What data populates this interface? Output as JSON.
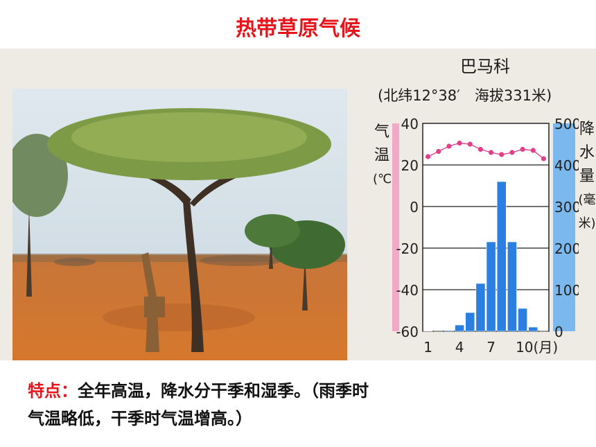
{
  "title": "热带草原气候",
  "station": {
    "name": "巴马科",
    "location": "(北纬12°38′　海拔331米)"
  },
  "axis_labels": {
    "left_chars": [
      "气",
      "温",
      "(℃)"
    ],
    "right_chars": [
      "降",
      "水",
      "量",
      "(毫",
      "米)"
    ]
  },
  "characteristics": {
    "lead": "特点：",
    "line1": "全年高温，降水分干季和湿季。（雨季时",
    "line2": "气温略低，干季时气温增高。）"
  },
  "colors": {
    "title": "#e8141c",
    "bar": "#2a7fe0",
    "temp_line": "#e0408a",
    "left_band": "#f2a9c8",
    "right_band": "#7ab8ee"
  },
  "chart_data": {
    "type": "bar+line",
    "categories": [
      "1",
      "2",
      "3",
      "4",
      "5",
      "6",
      "7",
      "8",
      "9",
      "10",
      "11",
      "12"
    ],
    "x_ticks": [
      "1",
      "4",
      "7",
      "10(月)"
    ],
    "temperature": {
      "unit": "℃",
      "values": [
        24,
        26.5,
        29,
        30.5,
        30,
        27.5,
        26,
        25,
        26,
        27.5,
        27,
        23
      ],
      "ylim": [
        -60,
        40
      ],
      "ticks": [
        "40",
        "20",
        "0",
        "-20",
        "-40",
        "-60"
      ]
    },
    "precipitation": {
      "unit": "毫米",
      "values": [
        1,
        0,
        2,
        15,
        45,
        115,
        215,
        360,
        215,
        55,
        10,
        0
      ],
      "ylim": [
        0,
        500
      ],
      "ticks": [
        "500",
        "400",
        "300",
        "200",
        "100",
        "0"
      ]
    },
    "grid": true
  }
}
